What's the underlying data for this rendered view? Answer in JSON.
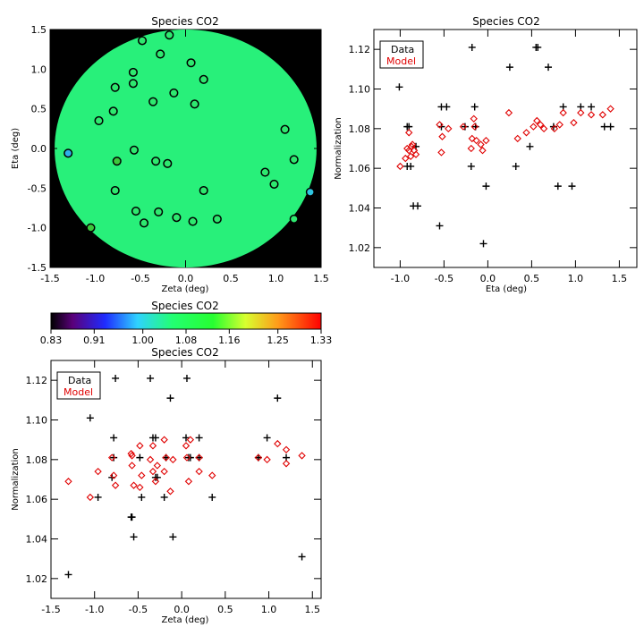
{
  "chart_data": [
    {
      "type": "scatter",
      "title": "Species CO2",
      "xlabel": "Zeta (deg)",
      "ylabel": "Eta (deg)",
      "xlim": [
        -1.5,
        1.5
      ],
      "ylim": [
        -1.5,
        1.5
      ],
      "xticks": [
        "-1.5",
        "-1.0",
        "-0.5",
        "0.0",
        "0.5",
        "1.0",
        "1.5"
      ],
      "yticks": [
        "-1.5",
        "-1.0",
        "-0.5",
        "0.0",
        "0.5",
        "1.0",
        "1.5"
      ],
      "background": "#000000",
      "field_color": "#28f07a",
      "points": [
        {
          "x": -0.48,
          "y": 1.36,
          "c": "#2ee86f"
        },
        {
          "x": -0.18,
          "y": 1.43,
          "c": "#2ee86f"
        },
        {
          "x": -0.28,
          "y": 1.19,
          "c": "#2ee86f"
        },
        {
          "x": 0.06,
          "y": 1.08,
          "c": "#2ee86f"
        },
        {
          "x": -0.58,
          "y": 0.96,
          "c": "#2ee86f"
        },
        {
          "x": 0.2,
          "y": 0.87,
          "c": "#2ee86f"
        },
        {
          "x": -0.78,
          "y": 0.77,
          "c": "#2ee86f"
        },
        {
          "x": -0.58,
          "y": 0.82,
          "c": "#2ee86f"
        },
        {
          "x": -0.13,
          "y": 0.7,
          "c": "#2ee86f"
        },
        {
          "x": -0.36,
          "y": 0.59,
          "c": "#2ee86f"
        },
        {
          "x": 0.1,
          "y": 0.56,
          "c": "#2ee86f"
        },
        {
          "x": -0.8,
          "y": 0.47,
          "c": "#2ee86f"
        },
        {
          "x": -0.96,
          "y": 0.35,
          "c": "#2ee86f"
        },
        {
          "x": 1.1,
          "y": 0.24,
          "c": "#2ee86f"
        },
        {
          "x": -0.57,
          "y": -0.02,
          "c": "#2ee86f"
        },
        {
          "x": -1.3,
          "y": -0.06,
          "c": "#2fb0e8"
        },
        {
          "x": 1.2,
          "y": -0.14,
          "c": "#2ee86f"
        },
        {
          "x": -0.76,
          "y": -0.16,
          "c": "#3cc83c"
        },
        {
          "x": -0.33,
          "y": -0.16,
          "c": "#2ee86f"
        },
        {
          "x": -0.2,
          "y": -0.19,
          "c": "#2ee86f"
        },
        {
          "x": 0.88,
          "y": -0.3,
          "c": "#2ee86f"
        },
        {
          "x": 0.98,
          "y": -0.45,
          "c": "#2ee86f"
        },
        {
          "x": -0.78,
          "y": -0.53,
          "c": "#2ee86f"
        },
        {
          "x": 0.2,
          "y": -0.53,
          "c": "#2ee86f"
        },
        {
          "x": 1.38,
          "y": -0.55,
          "c": "#2fc4e0"
        },
        {
          "x": -0.55,
          "y": -0.79,
          "c": "#2ee86f"
        },
        {
          "x": -0.3,
          "y": -0.8,
          "c": "#2ee86f"
        },
        {
          "x": -0.1,
          "y": -0.87,
          "c": "#2ee86f"
        },
        {
          "x": 0.35,
          "y": -0.89,
          "c": "#2ee86f"
        },
        {
          "x": 1.2,
          "y": -0.89,
          "c": "#2ee86f"
        },
        {
          "x": -0.46,
          "y": -0.94,
          "c": "#2ee86f"
        },
        {
          "x": 0.08,
          "y": -0.92,
          "c": "#2ee86f"
        },
        {
          "x": -1.05,
          "y": -1.0,
          "c": "#3cc83c"
        }
      ]
    },
    {
      "type": "scatter",
      "title": "Species CO2",
      "xlabel": "Eta (deg)",
      "ylabel": "Normalization",
      "xlim": [
        -1.3,
        1.7
      ],
      "ylim": [
        1.01,
        1.13
      ],
      "xticks": [
        "-1.0",
        "-0.5",
        "0.0",
        "0.5",
        "1.0",
        "1.5"
      ],
      "yticks": [
        "1.02",
        "1.04",
        "1.06",
        "1.08",
        "1.10",
        "1.12"
      ],
      "legend": [
        "Data",
        "Model"
      ],
      "legend_colors": [
        "#000000",
        "#e00000"
      ],
      "data_points": [
        [
          -1.01,
          1.101
        ],
        [
          -0.92,
          1.081
        ],
        [
          -0.9,
          1.081
        ],
        [
          -0.92,
          1.061
        ],
        [
          -0.88,
          1.061
        ],
        [
          -0.85,
          1.041
        ],
        [
          -0.8,
          1.041
        ],
        [
          -0.82,
          1.071
        ],
        [
          -0.55,
          1.031
        ],
        [
          -0.53,
          1.091
        ],
        [
          -0.47,
          1.091
        ],
        [
          -0.53,
          1.081
        ],
        [
          -0.18,
          1.121
        ],
        [
          -0.15,
          1.091
        ],
        [
          -0.19,
          1.061
        ],
        [
          -0.14,
          1.081
        ],
        [
          -0.26,
          1.081
        ],
        [
          -0.05,
          1.022
        ],
        [
          -0.02,
          1.051
        ],
        [
          0.25,
          1.111
        ],
        [
          0.32,
          1.061
        ],
        [
          0.48,
          1.071
        ],
        [
          0.55,
          1.121
        ],
        [
          0.57,
          1.121
        ],
        [
          0.69,
          1.111
        ],
        [
          0.75,
          1.081
        ],
        [
          0.8,
          1.051
        ],
        [
          0.86,
          1.091
        ],
        [
          0.96,
          1.051
        ],
        [
          1.06,
          1.091
        ],
        [
          1.18,
          1.091
        ],
        [
          1.33,
          1.081
        ],
        [
          1.4,
          1.081
        ]
      ],
      "model_points": [
        [
          -1.0,
          1.061
        ],
        [
          -0.94,
          1.065
        ],
        [
          -0.9,
          1.069
        ],
        [
          -0.88,
          1.066
        ],
        [
          -0.86,
          1.072
        ],
        [
          -0.84,
          1.069
        ],
        [
          -0.82,
          1.067
        ],
        [
          -0.9,
          1.078
        ],
        [
          -0.92,
          1.07
        ],
        [
          -0.87,
          1.071
        ],
        [
          -0.55,
          1.082
        ],
        [
          -0.52,
          1.076
        ],
        [
          -0.53,
          1.068
        ],
        [
          -0.45,
          1.08
        ],
        [
          -0.28,
          1.081
        ],
        [
          -0.18,
          1.075
        ],
        [
          -0.15,
          1.081
        ],
        [
          -0.16,
          1.085
        ],
        [
          -0.13,
          1.074
        ],
        [
          -0.19,
          1.07
        ],
        [
          -0.02,
          1.074
        ],
        [
          -0.08,
          1.072
        ],
        [
          -0.06,
          1.069
        ],
        [
          0.24,
          1.088
        ],
        [
          0.34,
          1.075
        ],
        [
          0.44,
          1.078
        ],
        [
          0.52,
          1.081
        ],
        [
          0.56,
          1.084
        ],
        [
          0.6,
          1.082
        ],
        [
          0.64,
          1.08
        ],
        [
          0.76,
          1.08
        ],
        [
          0.82,
          1.082
        ],
        [
          0.86,
          1.088
        ],
        [
          0.98,
          1.083
        ],
        [
          1.06,
          1.088
        ],
        [
          1.18,
          1.087
        ],
        [
          1.31,
          1.087
        ],
        [
          1.4,
          1.09
        ]
      ]
    },
    {
      "type": "colorbar",
      "title": "Species CO2",
      "ticks": [
        "0.83",
        "0.91",
        "1.00",
        "1.08",
        "1.16",
        "1.25",
        "1.33"
      ],
      "range": [
        0.83,
        1.33
      ]
    },
    {
      "type": "scatter",
      "title": "Species CO2",
      "xlabel": "Zeta (deg)",
      "ylabel": "Normalization",
      "xlim": [
        -1.5,
        1.6
      ],
      "ylim": [
        1.01,
        1.13
      ],
      "xticks": [
        "-1.5",
        "-1.0",
        "-0.5",
        "0.0",
        "0.5",
        "1.0",
        "1.5"
      ],
      "yticks": [
        "1.02",
        "1.04",
        "1.06",
        "1.08",
        "1.10",
        "1.12"
      ],
      "legend": [
        "Data",
        "Model"
      ],
      "legend_colors": [
        "#000000",
        "#e00000"
      ],
      "data_points": [
        [
          -1.3,
          1.022
        ],
        [
          -1.05,
          1.101
        ],
        [
          -0.96,
          1.061
        ],
        [
          -0.8,
          1.071
        ],
        [
          -0.78,
          1.091
        ],
        [
          -0.78,
          1.081
        ],
        [
          -0.76,
          1.121
        ],
        [
          -0.58,
          1.051
        ],
        [
          -0.57,
          1.051
        ],
        [
          -0.55,
          1.041
        ],
        [
          -0.48,
          1.081
        ],
        [
          -0.46,
          1.061
        ],
        [
          -0.36,
          1.121
        ],
        [
          -0.33,
          1.091
        ],
        [
          -0.3,
          1.091
        ],
        [
          -0.3,
          1.071
        ],
        [
          -0.28,
          1.071
        ],
        [
          -0.2,
          1.061
        ],
        [
          -0.18,
          1.081
        ],
        [
          -0.13,
          1.111
        ],
        [
          -0.1,
          1.041
        ],
        [
          0.05,
          1.091
        ],
        [
          0.06,
          1.121
        ],
        [
          0.08,
          1.081
        ],
        [
          0.1,
          1.081
        ],
        [
          0.2,
          1.091
        ],
        [
          0.2,
          1.081
        ],
        [
          0.35,
          1.061
        ],
        [
          0.88,
          1.081
        ],
        [
          0.98,
          1.091
        ],
        [
          1.1,
          1.111
        ],
        [
          1.2,
          1.081
        ],
        [
          1.38,
          1.031
        ]
      ],
      "model_points": [
        [
          -1.3,
          1.069
        ],
        [
          -1.05,
          1.061
        ],
        [
          -0.96,
          1.074
        ],
        [
          -0.8,
          1.081
        ],
        [
          -0.78,
          1.072
        ],
        [
          -0.76,
          1.067
        ],
        [
          -0.58,
          1.083
        ],
        [
          -0.57,
          1.082
        ],
        [
          -0.57,
          1.077
        ],
        [
          -0.55,
          1.067
        ],
        [
          -0.48,
          1.087
        ],
        [
          -0.48,
          1.066
        ],
        [
          -0.46,
          1.072
        ],
        [
          -0.36,
          1.08
        ],
        [
          -0.33,
          1.087
        ],
        [
          -0.33,
          1.074
        ],
        [
          -0.3,
          1.069
        ],
        [
          -0.28,
          1.077
        ],
        [
          -0.2,
          1.09
        ],
        [
          -0.2,
          1.074
        ],
        [
          -0.18,
          1.081
        ],
        [
          -0.13,
          1.064
        ],
        [
          -0.1,
          1.08
        ],
        [
          0.05,
          1.087
        ],
        [
          0.06,
          1.081
        ],
        [
          0.08,
          1.069
        ],
        [
          0.1,
          1.09
        ],
        [
          0.2,
          1.081
        ],
        [
          0.2,
          1.074
        ],
        [
          0.35,
          1.072
        ],
        [
          0.88,
          1.081
        ],
        [
          0.98,
          1.08
        ],
        [
          1.1,
          1.088
        ],
        [
          1.2,
          1.085
        ],
        [
          1.2,
          1.078
        ],
        [
          1.38,
          1.082
        ]
      ]
    }
  ]
}
